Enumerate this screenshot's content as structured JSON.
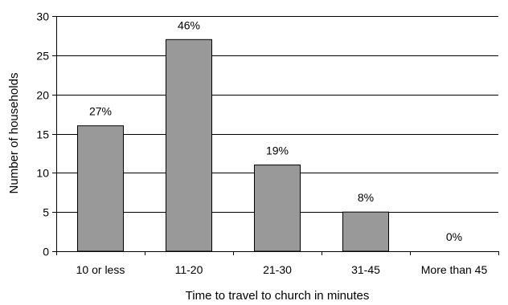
{
  "chart_data": {
    "type": "bar",
    "categories": [
      "10 or less",
      "11-20",
      "21-30",
      "31-45",
      "More than 45"
    ],
    "values": [
      16,
      27,
      11,
      5,
      0
    ],
    "data_labels": [
      "27%",
      "46%",
      "19%",
      "8%",
      "0%"
    ],
    "title": "",
    "xlabel": "Time to travel to church in minutes",
    "ylabel": "Number of households",
    "ylim": [
      0,
      30
    ],
    "yticks": [
      "0",
      "5",
      "10",
      "15",
      "20",
      "25",
      "30"
    ],
    "grid": true,
    "legend": "none",
    "colors": {
      "bar_fill": "#999999",
      "bar_stroke": "#000000",
      "grid": "#000000"
    }
  }
}
